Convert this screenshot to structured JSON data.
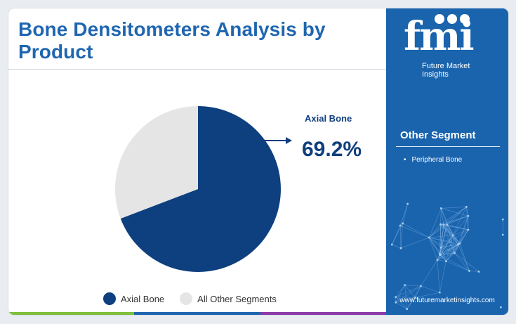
{
  "title": "Bone Densitometers Analysis by Product",
  "chart_data": {
    "type": "pie",
    "categories": [
      "Axial Bone",
      "All Other Segments"
    ],
    "values": [
      69.2,
      30.8
    ],
    "colors": [
      "#0e3f7f",
      "#e5e5e5"
    ],
    "callout": {
      "label": "Axial Bone",
      "value": "69.2%"
    },
    "legend": [
      "Axial Bone",
      "All Other Segments"
    ],
    "legend_position": "bottom"
  },
  "sidebar": {
    "logo_text": "fmi",
    "logo_subtitle": "Future Market Insights",
    "other_heading": "Other Segment",
    "other_items": [
      "Peripheral Bone"
    ],
    "website": "www.futuremarketinsights.com"
  },
  "bottom_bar_colors": [
    "#7fbf3b",
    "#1f66b1",
    "#8b3aa8"
  ]
}
